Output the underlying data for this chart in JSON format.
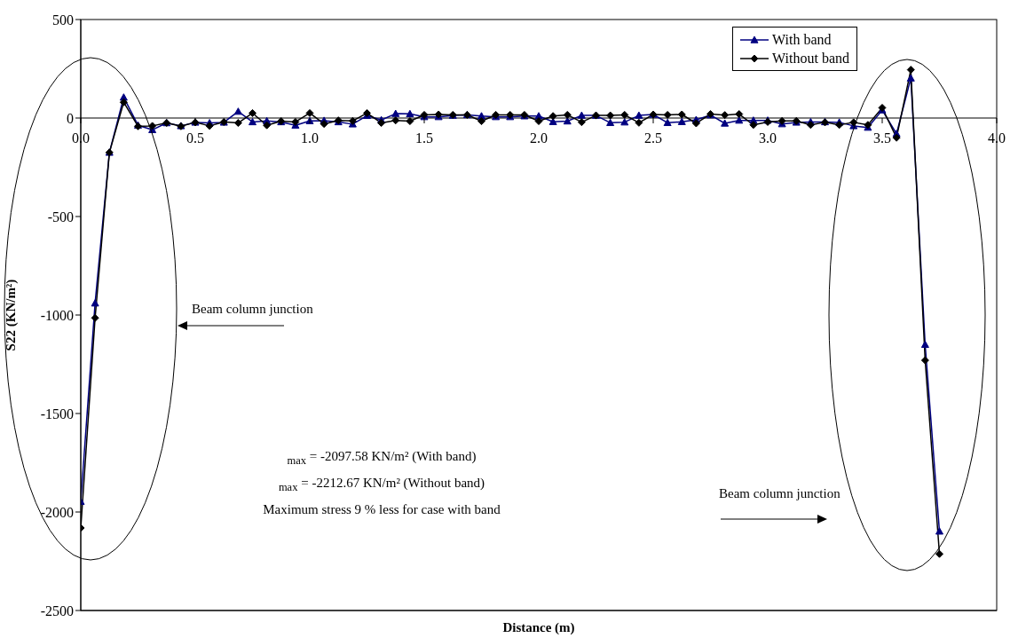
{
  "chart_data": {
    "type": "line",
    "xlabel": "Distance (m)",
    "ylabel": "S22 (KN/m²)",
    "x": [
      0,
      0.0625,
      0.125,
      0.1875,
      0.25,
      0.3125,
      0.375,
      0.4375,
      0.5,
      0.5625,
      0.625,
      0.6875,
      0.75,
      0.8125,
      0.875,
      0.9375,
      1.0,
      1.0625,
      1.125,
      1.1875,
      1.25,
      1.3125,
      1.375,
      1.4375,
      1.5,
      1.5625,
      1.625,
      1.6875,
      1.75,
      1.8125,
      1.875,
      1.9375,
      2.0,
      2.0625,
      2.125,
      2.1875,
      2.25,
      2.3125,
      2.375,
      2.4375,
      2.5,
      2.5625,
      2.625,
      2.6875,
      2.75,
      2.8125,
      2.875,
      2.9375,
      3.0,
      3.0625,
      3.125,
      3.1875,
      3.25,
      3.3125,
      3.375,
      3.4375,
      3.5,
      3.5625,
      3.625,
      3.6875,
      3.75
    ],
    "series": [
      {
        "name": "With band",
        "color": "#000080",
        "marker": "triangle",
        "values": [
          -1947,
          -940,
          -175,
          105,
          -37,
          -60,
          -25,
          -40,
          -22,
          -25,
          -22,
          33,
          -20,
          -15,
          -20,
          -37,
          -15,
          -13,
          -20,
          -31,
          12,
          -10,
          22,
          21,
          6,
          6,
          13,
          16,
          10,
          6,
          6,
          10,
          10,
          -19,
          -16,
          13,
          13,
          -24,
          -21,
          13,
          18,
          -24,
          -19,
          -9,
          15,
          -27,
          -12,
          -12,
          -12,
          -30,
          -22,
          -20,
          -20,
          -22,
          -40,
          -48,
          40,
          -80,
          202,
          -1150,
          -2098
        ]
      },
      {
        "name": "Without band",
        "color": "#000000",
        "marker": "diamond",
        "values": [
          -2081,
          -1015,
          -175,
          80,
          -42,
          -40,
          -25,
          -42,
          -22,
          -40,
          -20,
          -25,
          25,
          -37,
          -16,
          -20,
          25,
          -30,
          -12,
          -15,
          25,
          -25,
          -12,
          -16,
          16,
          18,
          16,
          16,
          -16,
          16,
          16,
          16,
          -16,
          10,
          16,
          -21,
          13,
          13,
          16,
          -24,
          18,
          16,
          18,
          -27,
          20,
          15,
          20,
          -35,
          -20,
          -15,
          -15,
          -35,
          -22,
          -35,
          -22,
          -35,
          52,
          -100,
          245,
          -1230,
          -2213
        ]
      }
    ],
    "xlim": [
      0,
      4
    ],
    "xticks": [
      {
        "value": 0,
        "label": "0.0"
      },
      {
        "value": 0.5,
        "label": "0.5"
      },
      {
        "value": 1,
        "label": "1.0"
      },
      {
        "value": 1.5,
        "label": "1.5"
      },
      {
        "value": 2,
        "label": "2.0"
      },
      {
        "value": 2.5,
        "label": "2.5"
      },
      {
        "value": 3,
        "label": "3.0"
      },
      {
        "value": 3.5,
        "label": "3.5"
      },
      {
        "value": 4,
        "label": "4.0"
      }
    ],
    "ylim": [
      -2500,
      500
    ],
    "yticks": [
      -2500,
      -2000,
      -1500,
      -1000,
      -500,
      0,
      500
    ],
    "grid": false,
    "legend": "top right",
    "line_style": "solid",
    "annotations": [
      "Beam column junction",
      "Beam column junction",
      "$_{max}$ = -2097.58 KN/m² (With band)",
      "$_{max}$ = -2212.67 KN/m² (Without band)",
      "Maximum stress 9 % less for case with band"
    ]
  }
}
